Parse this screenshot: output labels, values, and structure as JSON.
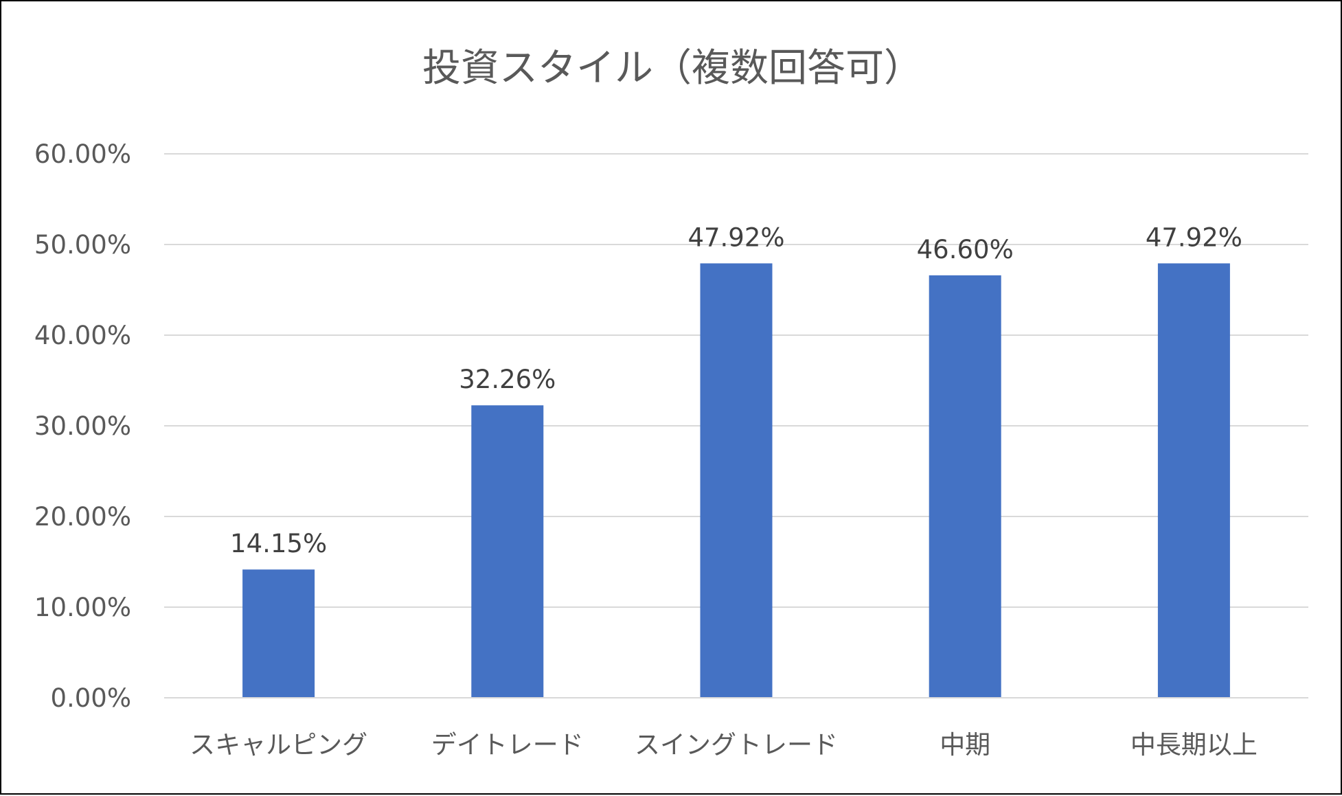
{
  "chart_data": {
    "type": "bar",
    "title": "投資スタイル（複数回答可）",
    "categories": [
      "スキャルピング",
      "デイトレード",
      "スイングトレード",
      "中期",
      "中長期以上"
    ],
    "values": [
      14.15,
      32.26,
      47.92,
      46.6,
      47.92
    ],
    "data_labels": [
      "14.15%",
      "32.26%",
      "47.92%",
      "46.60%",
      "47.92%"
    ],
    "ylim": [
      0,
      60
    ],
    "yticks": [
      0,
      10,
      20,
      30,
      40,
      50,
      60
    ],
    "ytick_labels": [
      "0.00%",
      "10.00%",
      "20.00%",
      "30.00%",
      "40.00%",
      "50.00%",
      "60.00%"
    ],
    "xlabel": "",
    "ylabel": "",
    "grid": true,
    "legend": "none",
    "bar_color": "#4472C4",
    "grid_color": "#D9D9D9"
  }
}
